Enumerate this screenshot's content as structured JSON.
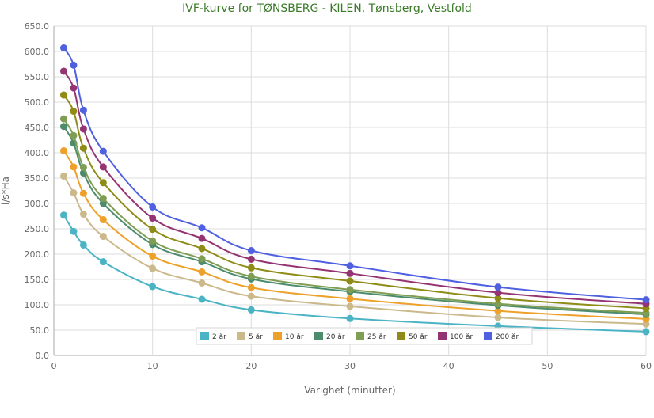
{
  "chart_data": {
    "type": "line",
    "title": "IVF-kurve for TØNSBERG - KILEN, Tønsberg, Vestfold",
    "xlabel": "Varighet (minutter)",
    "ylabel": "l/s*Ha",
    "xlim": [
      0,
      60
    ],
    "ylim": [
      0,
      650
    ],
    "xticks": [
      "0",
      "10",
      "20",
      "30",
      "40",
      "50",
      "60"
    ],
    "yticks": [
      "0.0",
      "50.0",
      "100.0",
      "150.0",
      "200.0",
      "250.0",
      "300.0",
      "350.0",
      "400.0",
      "450.0",
      "500.0",
      "550.0",
      "600.0",
      "650.0"
    ],
    "grid": true,
    "legend_position": "bottom-center",
    "x": [
      1,
      2,
      3,
      5,
      10,
      15,
      20,
      30,
      45,
      60
    ],
    "series": [
      {
        "name": "2 år",
        "color": "#4ab3c4",
        "values": [
          277,
          245,
          218,
          185,
          136,
          111,
          90,
          73,
          58,
          47
        ]
      },
      {
        "name": "5 år",
        "color": "#cbb98c",
        "values": [
          354,
          321,
          279,
          235,
          172,
          143,
          117,
          97,
          75,
          62
        ]
      },
      {
        "name": "10 år",
        "color": "#eda12a",
        "values": [
          404,
          372,
          320,
          268,
          196,
          165,
          134,
          112,
          88,
          72
        ]
      },
      {
        "name": "20 år",
        "color": "#4c8c6c",
        "values": [
          452,
          419,
          360,
          300,
          219,
          185,
          151,
          126,
          99,
          81
        ]
      },
      {
        "name": "25 år",
        "color": "#7f9e54",
        "values": [
          467,
          434,
          371,
          310,
          226,
          191,
          156,
          130,
          102,
          84
        ]
      },
      {
        "name": "50 år",
        "color": "#8e8b16",
        "values": [
          514,
          482,
          409,
          341,
          249,
          211,
          173,
          147,
          113,
          93
        ]
      },
      {
        "name": "100 år",
        "color": "#953472",
        "values": [
          561,
          528,
          447,
          372,
          271,
          231,
          190,
          162,
          124,
          102
        ]
      },
      {
        "name": "200 år",
        "color": "#4f60e0",
        "values": [
          607,
          573,
          484,
          403,
          293,
          252,
          207,
          177,
          135,
          110
        ]
      }
    ]
  }
}
